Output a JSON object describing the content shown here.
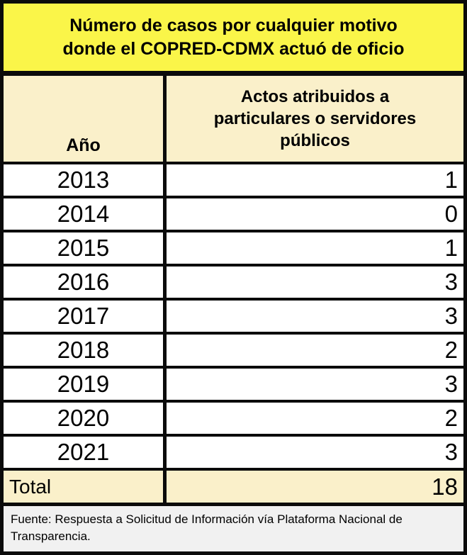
{
  "title": "Número de casos por cualquier motivo donde el COPRED-CDMX actuó de oficio",
  "header": {
    "year": "Año",
    "acts": "Actos atribuidos a particulares o servidores públicos"
  },
  "rows": [
    {
      "year": "2013",
      "value": "1"
    },
    {
      "year": "2014",
      "value": "0"
    },
    {
      "year": "2015",
      "value": "1"
    },
    {
      "year": "2016",
      "value": "3"
    },
    {
      "year": "2017",
      "value": "3"
    },
    {
      "year": "2018",
      "value": "2"
    },
    {
      "year": "2019",
      "value": "3"
    },
    {
      "year": "2020",
      "value": "2"
    },
    {
      "year": "2021",
      "value": "3"
    }
  ],
  "total": {
    "label": "Total",
    "value": "18"
  },
  "source": "Fuente: Respuesta a Solicitud de Información vía Plataforma Nacional de Transparencia.",
  "colors": {
    "title_bg": "#FAF549",
    "header_bg": "#FAF0CA",
    "row_bg": "#FFFFFF",
    "total_bg": "#FAF0CA",
    "source_bg": "#F1F1F1",
    "frame": "#0B0B0B",
    "text": "#000000"
  },
  "chart_data": {
    "type": "table",
    "title": "Número de casos por cualquier motivo donde el COPRED-CDMX actuó de oficio",
    "columns": [
      "Año",
      "Actos atribuidos a particulares o servidores públicos"
    ],
    "categories": [
      "2013",
      "2014",
      "2015",
      "2016",
      "2017",
      "2018",
      "2019",
      "2020",
      "2021"
    ],
    "values": [
      1,
      0,
      1,
      3,
      3,
      2,
      3,
      2,
      3
    ],
    "total_label": "Total",
    "total": 18,
    "source": "Fuente: Respuesta a Solicitud de Información vía Plataforma Nacional de Transparencia."
  }
}
